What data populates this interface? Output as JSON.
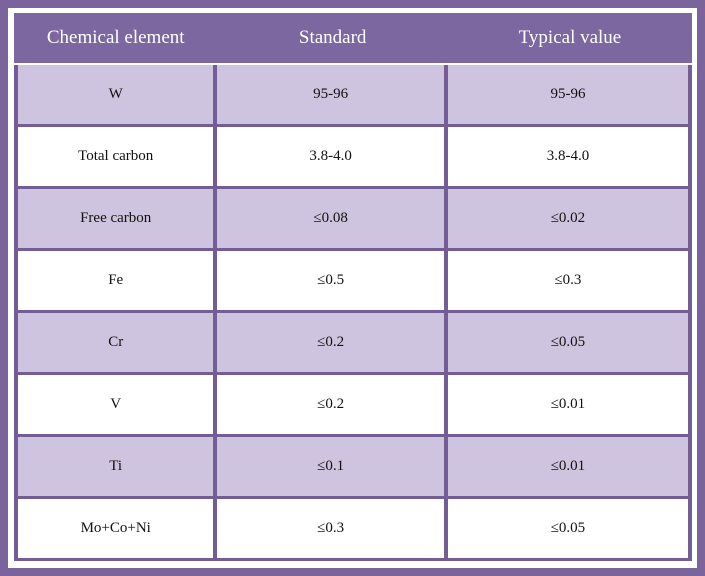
{
  "table": {
    "columns": [
      "Chemical element",
      "Standard",
      "Typical value"
    ],
    "rows": [
      {
        "element": "W",
        "standard": "95-96",
        "typical": "95-96"
      },
      {
        "element": "Total carbon",
        "standard": "3.8-4.0",
        "typical": "3.8-4.0"
      },
      {
        "element": "Free carbon",
        "standard": "≤0.08",
        "typical": "≤0.02"
      },
      {
        "element": "Fe",
        "standard": "≤0.5",
        "typical": "≤0.3"
      },
      {
        "element": "Cr",
        "standard": "≤0.2",
        "typical": "≤0.05"
      },
      {
        "element": "V",
        "standard": "≤0.2",
        "typical": "≤0.01"
      },
      {
        "element": "Ti",
        "standard": "≤0.1",
        "typical": "≤0.01"
      },
      {
        "element": "Mo+Co+Ni",
        "standard": "≤0.3",
        "typical": "≤0.05"
      }
    ]
  },
  "colors": {
    "frame": "#7b639c",
    "header_bg": "#7d67a1",
    "cell_border": "#745d97",
    "row_alt_bg": "#cfc4df",
    "row_bg": "#ffffff",
    "header_text": "#ffffff",
    "body_text": "#111111"
  }
}
